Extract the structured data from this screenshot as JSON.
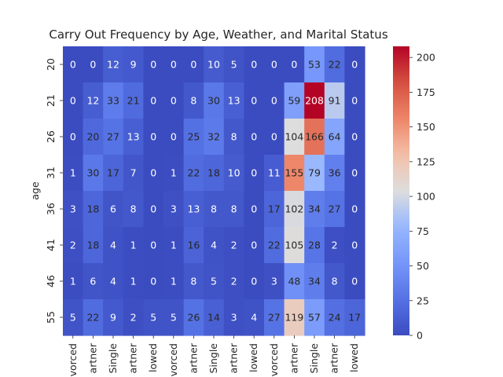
{
  "chart_data": {
    "type": "heatmap",
    "title": "Carry Out Frequency by Age, Weather, and Marital Status",
    "ylabel": "age",
    "xlabel": "",
    "y_categories": [
      "20",
      "21",
      "26",
      "31",
      "36",
      "41",
      "46",
      "55"
    ],
    "x_categories": [
      "Divorced",
      "Married partner",
      "Single",
      "Unmarried partner",
      "Widowed",
      "Divorced",
      "Married partner",
      "Single",
      "Unmarried partner",
      "Widowed",
      "Divorced",
      "Married partner",
      "Single",
      "Unmarried partner",
      "Widowed"
    ],
    "x_tick_labels_visible": [
      "vorced",
      "artner",
      "Single",
      "artner",
      "lowed",
      "vorced",
      "artner",
      "Single",
      "artner",
      "lowed",
      "vorced",
      "artner",
      "Single",
      "artner",
      "lowed"
    ],
    "values": [
      [
        0,
        0,
        12,
        9,
        0,
        0,
        0,
        10,
        5,
        0,
        0,
        0,
        53,
        22,
        0
      ],
      [
        0,
        12,
        33,
        21,
        0,
        0,
        8,
        30,
        13,
        0,
        0,
        59,
        208,
        91,
        0
      ],
      [
        0,
        20,
        27,
        13,
        0,
        0,
        25,
        32,
        8,
        0,
        0,
        104,
        166,
        64,
        0
      ],
      [
        1,
        30,
        17,
        7,
        0,
        1,
        22,
        18,
        10,
        0,
        11,
        155,
        79,
        36,
        0
      ],
      [
        3,
        18,
        6,
        8,
        0,
        3,
        13,
        8,
        8,
        0,
        17,
        102,
        34,
        27,
        0
      ],
      [
        2,
        18,
        4,
        1,
        0,
        1,
        16,
        4,
        2,
        0,
        22,
        105,
        28,
        2,
        0
      ],
      [
        1,
        6,
        4,
        1,
        0,
        1,
        8,
        5,
        2,
        0,
        3,
        48,
        34,
        8,
        0
      ],
      [
        5,
        22,
        9,
        2,
        5,
        5,
        26,
        14,
        3,
        4,
        27,
        119,
        57,
        24,
        17
      ]
    ],
    "colormap": "coolwarm",
    "vmin": 0,
    "vmax": 208,
    "colorbar_ticks": [
      0,
      25,
      50,
      75,
      100,
      125,
      150,
      175,
      200
    ]
  }
}
